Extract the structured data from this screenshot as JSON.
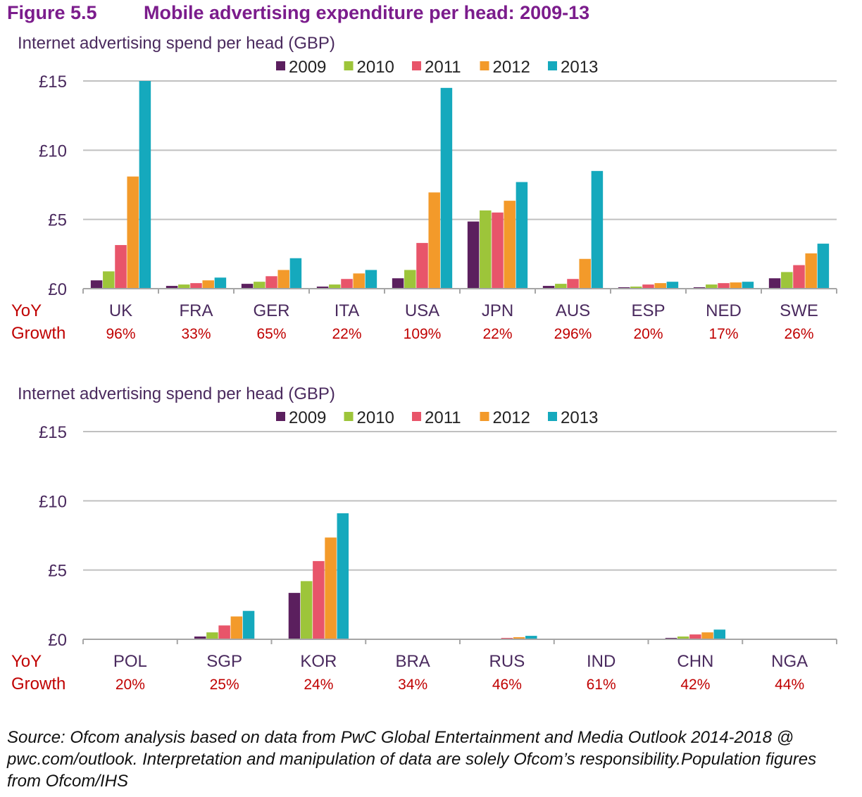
{
  "figure_number": "Figure 5.5",
  "figure_title": "Mobile advertising expenditure per head: 2009-13",
  "yoy_label_line1": "YoY",
  "yoy_label_line2": "Growth",
  "source": "Source: Ofcom analysis based on data from PwC Global Entertainment and Media Outlook 2014-2018 @ pwc.com/outlook. Interpretation and manipulation of data are solely Ofcom’s responsibility.Population figures from Ofcom/IHS",
  "colors": {
    "title": "#7b1c8c",
    "axis_text": "#4a2a5e",
    "growth": "#c00000",
    "grid": "#c0c0c0"
  },
  "chart_data": [
    {
      "type": "bar",
      "ylabel": "Internet advertising spend per head (GBP)",
      "ylim": [
        0,
        15
      ],
      "yticks": [
        0,
        5,
        10,
        15
      ],
      "ytick_labels": [
        "£0",
        "£5",
        "£10",
        "£15"
      ],
      "grid": true,
      "legend_position": "top-center",
      "categories": [
        "UK",
        "FRA",
        "GER",
        "ITA",
        "USA",
        "JPN",
        "AUS",
        "ESP",
        "NED",
        "SWE"
      ],
      "growth": [
        "96%",
        "33%",
        "65%",
        "22%",
        "109%",
        "22%",
        "296%",
        "20%",
        "17%",
        "26%"
      ],
      "series": [
        {
          "name": "2009",
          "color": "#5b1f5e",
          "values": [
            0.6,
            0.2,
            0.35,
            0.15,
            0.75,
            4.85,
            0.2,
            0.1,
            0.1,
            0.75
          ]
        },
        {
          "name": "2010",
          "color": "#9dc53a",
          "values": [
            1.25,
            0.3,
            0.5,
            0.3,
            1.35,
            5.65,
            0.35,
            0.15,
            0.3,
            1.2
          ]
        },
        {
          "name": "2011",
          "color": "#e8556a",
          "values": [
            3.15,
            0.4,
            0.9,
            0.7,
            3.3,
            5.5,
            0.7,
            0.3,
            0.4,
            1.7
          ]
        },
        {
          "name": "2012",
          "color": "#f39a2a",
          "values": [
            8.1,
            0.6,
            1.35,
            1.1,
            6.95,
            6.35,
            2.15,
            0.4,
            0.45,
            2.55
          ]
        },
        {
          "name": "2013",
          "color": "#15a9bd",
          "values": [
            15.0,
            0.8,
            2.2,
            1.35,
            14.5,
            7.7,
            8.5,
            0.5,
            0.5,
            3.25
          ]
        }
      ]
    },
    {
      "type": "bar",
      "ylabel": "Internet advertising spend per head (GBP)",
      "ylim": [
        0,
        15
      ],
      "yticks": [
        0,
        5,
        10,
        15
      ],
      "ytick_labels": [
        "£0",
        "£5",
        "£10",
        "£15"
      ],
      "grid": true,
      "legend_position": "top-center",
      "categories": [
        "POL",
        "SGP",
        "KOR",
        "BRA",
        "RUS",
        "IND",
        "CHN",
        "NGA"
      ],
      "growth": [
        "20%",
        "25%",
        "24%",
        "34%",
        "46%",
        "61%",
        "42%",
        "44%"
      ],
      "series": [
        {
          "name": "2009",
          "color": "#5b1f5e",
          "values": [
            0.0,
            0.2,
            3.35,
            0.0,
            0.03,
            0.0,
            0.1,
            0.0
          ]
        },
        {
          "name": "2010",
          "color": "#9dc53a",
          "values": [
            0.0,
            0.5,
            4.2,
            0.0,
            0.05,
            0.0,
            0.2,
            0.0
          ]
        },
        {
          "name": "2011",
          "color": "#e8556a",
          "values": [
            0.02,
            1.0,
            5.65,
            0.02,
            0.1,
            0.0,
            0.35,
            0.02
          ]
        },
        {
          "name": "2012",
          "color": "#f39a2a",
          "values": [
            0.02,
            1.65,
            7.35,
            0.02,
            0.15,
            0.01,
            0.5,
            0.02
          ]
        },
        {
          "name": "2013",
          "color": "#15a9bd",
          "values": [
            0.03,
            2.05,
            9.1,
            0.03,
            0.25,
            0.02,
            0.7,
            0.05
          ]
        }
      ]
    }
  ]
}
